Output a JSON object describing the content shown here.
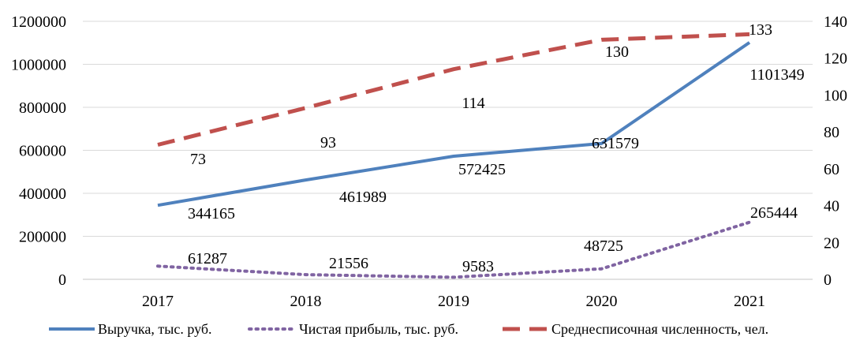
{
  "chart_data": {
    "type": "line",
    "title": "",
    "xlabel": "",
    "ylabel": "",
    "y2label": "",
    "categories": [
      "2017",
      "2018",
      "2019",
      "2020",
      "2021"
    ],
    "ylim": [
      0,
      1200000
    ],
    "y_ticks": [
      0,
      200000,
      400000,
      600000,
      800000,
      1000000,
      1200000
    ],
    "y_tick_labels": [
      "0",
      "200000",
      "400000",
      "600000",
      "800000",
      "1000000",
      "1200000"
    ],
    "y2lim": [
      0,
      140
    ],
    "y2_ticks": [
      0,
      20,
      40,
      60,
      80,
      100,
      120,
      140
    ],
    "y2_tick_labels": [
      "0",
      "20",
      "40",
      "60",
      "80",
      "100",
      "120",
      "140"
    ],
    "grid": "horizontal",
    "legend_position": "bottom",
    "series": [
      {
        "name": "Выручка, тыс. руб.",
        "axis": "left",
        "style": "solid",
        "color": "#4f81bd",
        "values": [
          344165,
          461989,
          572425,
          631579,
          1101349
        ],
        "labels": [
          "344165",
          "461989",
          "572425",
          "631579",
          "1101349"
        ]
      },
      {
        "name": "Чистая прибыль, тыс. руб.",
        "axis": "left",
        "style": "dotted",
        "color": "#8064a2",
        "values": [
          61287,
          21556,
          9583,
          48725,
          265444
        ],
        "labels": [
          "61287",
          "21556",
          "9583",
          "48725",
          "265444"
        ]
      },
      {
        "name": "Среднесписочная численность, чел.",
        "axis": "right",
        "style": "dashed",
        "color": "#c0504d",
        "values": [
          73,
          93,
          114,
          130,
          133
        ],
        "labels": [
          "73",
          "93",
          "114",
          "130",
          "133"
        ]
      }
    ]
  }
}
